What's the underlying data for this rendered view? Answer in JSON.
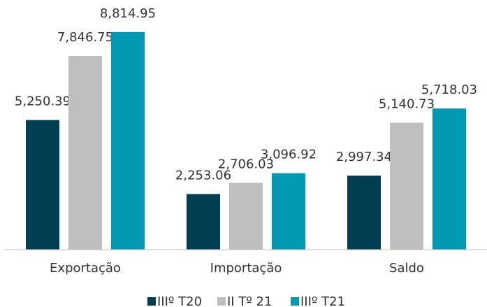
{
  "chart_data": {
    "type": "bar",
    "categories": [
      "Exportação",
      "Importação",
      "Saldo"
    ],
    "series": [
      {
        "name": "IIIº T20",
        "color": "#003f51",
        "values": [
          5250.39,
          2253.06,
          2997.34
        ],
        "value_labels": [
          "5,250.39",
          "2,253.06",
          "2,997.34"
        ]
      },
      {
        "name": "II Tº 21",
        "color": "#bfbfbf",
        "values": [
          7846.75,
          2706.03,
          5140.73
        ],
        "value_labels": [
          "7,846.75",
          "2,706.03",
          "5,140.73"
        ]
      },
      {
        "name": "IIIº T21",
        "color": "#0099b4",
        "values": [
          8814.95,
          3096.92,
          5718.03
        ],
        "value_labels": [
          "8,814.95",
          "3,096.92",
          "5,718.03"
        ]
      }
    ],
    "ylim": [
      0,
      10000
    ]
  }
}
